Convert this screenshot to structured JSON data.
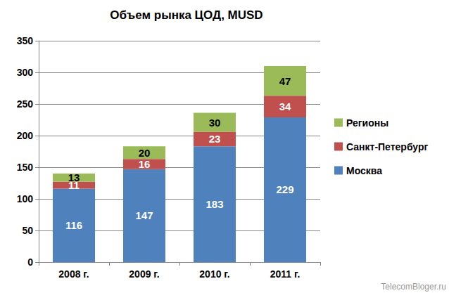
{
  "chart_data": {
    "type": "bar",
    "title": "Объем рынка ЦОД, MUSD",
    "categories": [
      "2008 г.",
      "2009 г.",
      "2010 г.",
      "2011 г."
    ],
    "series": [
      {
        "name": "Москва",
        "color": "#4f81bd",
        "values": [
          116,
          147,
          183,
          229
        ]
      },
      {
        "name": "Санкт-Петербург",
        "color": "#c0504d",
        "values": [
          11,
          16,
          23,
          34
        ]
      },
      {
        "name": "Регионы",
        "color": "#9bbb59",
        "values": [
          13,
          20,
          30,
          47
        ]
      }
    ],
    "stacked": true,
    "data_labels": true,
    "ylim": [
      0,
      350
    ],
    "yticks": [
      0,
      50,
      100,
      150,
      200,
      250,
      300,
      350
    ],
    "grid": true,
    "legend": "right",
    "annotations": [
      "TelecomBloger.ru"
    ]
  }
}
